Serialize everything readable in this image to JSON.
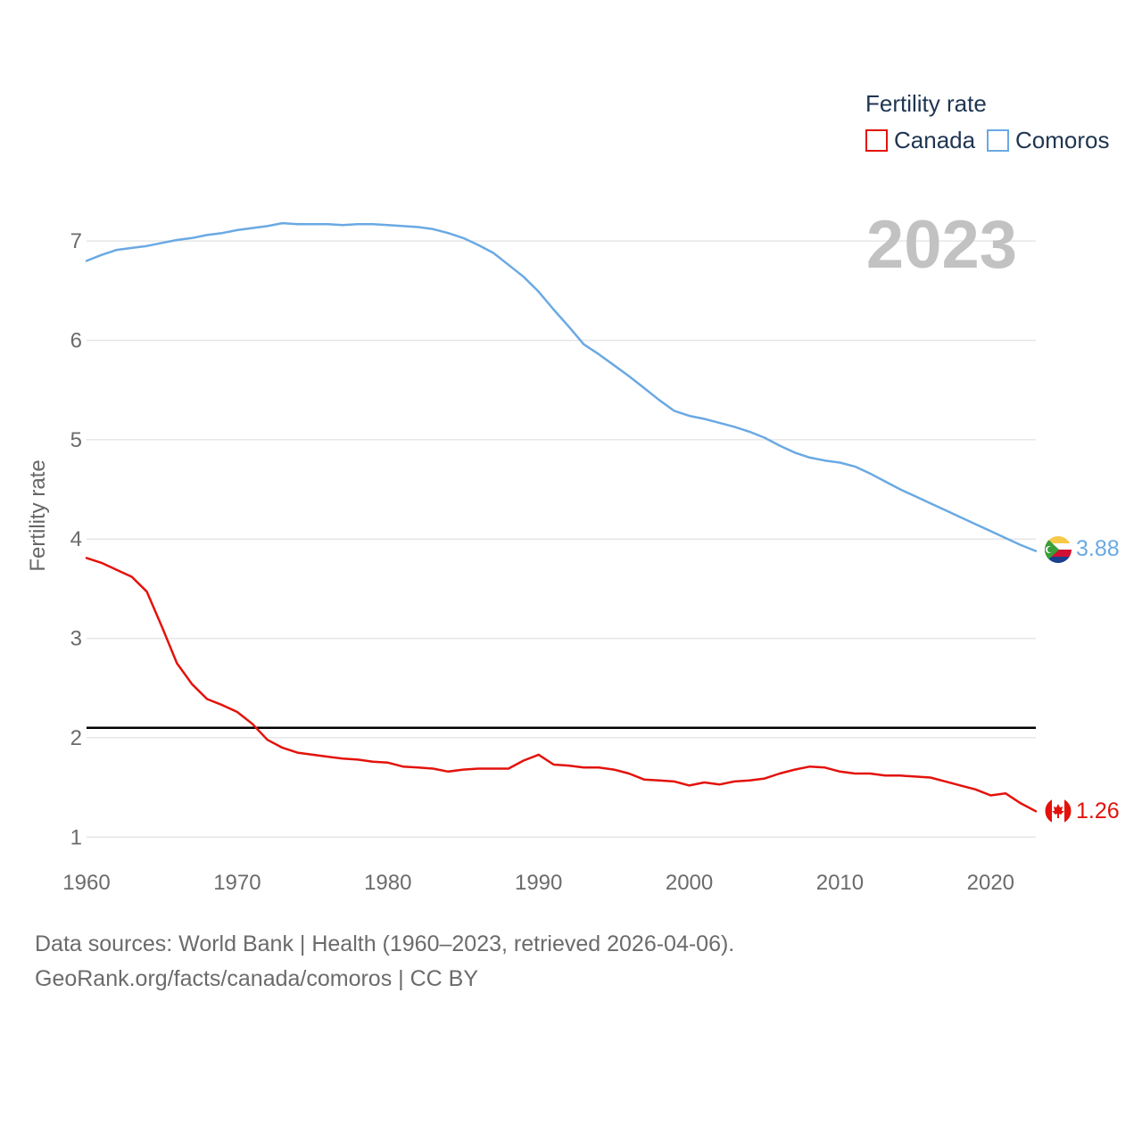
{
  "chart_data": {
    "type": "line",
    "title": "Fertility rate",
    "xlabel": "",
    "ylabel": "Fertility rate",
    "xlim": [
      1960,
      2023
    ],
    "ylim": [
      0.85,
      7.45
    ],
    "x_ticks": [
      1960,
      1970,
      1980,
      1990,
      2000,
      2010,
      2020
    ],
    "y_ticks": [
      1,
      2,
      3,
      4,
      5,
      6,
      7
    ],
    "current_year": "2023",
    "reference_line": {
      "value": 2.1,
      "color": "#000000"
    },
    "x": [
      1960,
      1961,
      1962,
      1963,
      1964,
      1965,
      1966,
      1967,
      1968,
      1969,
      1970,
      1971,
      1972,
      1973,
      1974,
      1975,
      1976,
      1977,
      1978,
      1979,
      1980,
      1981,
      1982,
      1983,
      1984,
      1985,
      1986,
      1987,
      1988,
      1989,
      1990,
      1991,
      1992,
      1993,
      1994,
      1995,
      1996,
      1997,
      1998,
      1999,
      2000,
      2001,
      2002,
      2003,
      2004,
      2005,
      2006,
      2007,
      2008,
      2009,
      2010,
      2011,
      2012,
      2013,
      2014,
      2015,
      2016,
      2017,
      2018,
      2019,
      2020,
      2021,
      2022,
      2023
    ],
    "series": [
      {
        "name": "Canada",
        "color": "#e3120b",
        "flag": "canada-flag",
        "end_label": "1.26",
        "values": [
          3.81,
          3.76,
          3.69,
          3.62,
          3.47,
          3.12,
          2.75,
          2.54,
          2.39,
          2.33,
          2.26,
          2.14,
          1.98,
          1.9,
          1.85,
          1.83,
          1.81,
          1.79,
          1.78,
          1.76,
          1.75,
          1.71,
          1.7,
          1.69,
          1.66,
          1.68,
          1.69,
          1.69,
          1.69,
          1.77,
          1.83,
          1.73,
          1.72,
          1.7,
          1.7,
          1.68,
          1.64,
          1.58,
          1.57,
          1.56,
          1.52,
          1.55,
          1.53,
          1.56,
          1.57,
          1.59,
          1.64,
          1.68,
          1.71,
          1.7,
          1.66,
          1.64,
          1.64,
          1.62,
          1.62,
          1.61,
          1.6,
          1.56,
          1.52,
          1.48,
          1.42,
          1.44,
          1.34,
          1.26
        ]
      },
      {
        "name": "Comoros",
        "color": "#6aa9e3",
        "flag": "comoros-flag",
        "end_label": "3.88",
        "values": [
          6.8,
          6.86,
          6.91,
          6.93,
          6.95,
          6.98,
          7.01,
          7.03,
          7.06,
          7.08,
          7.11,
          7.13,
          7.15,
          7.18,
          7.17,
          7.17,
          7.17,
          7.16,
          7.17,
          7.17,
          7.16,
          7.15,
          7.14,
          7.12,
          7.08,
          7.03,
          6.96,
          6.88,
          6.76,
          6.64,
          6.49,
          6.31,
          6.14,
          5.96,
          5.86,
          5.75,
          5.64,
          5.52,
          5.4,
          5.29,
          5.24,
          5.21,
          5.17,
          5.13,
          5.08,
          5.02,
          4.94,
          4.87,
          4.82,
          4.79,
          4.77,
          4.73,
          4.66,
          4.58,
          4.5,
          4.43,
          4.36,
          4.29,
          4.22,
          4.15,
          4.08,
          4.01,
          3.94,
          3.88
        ]
      }
    ],
    "legend": {
      "title": "Fertility rate",
      "placement": "top-right"
    }
  },
  "footer": {
    "line1": "Data sources: World Bank | Health (1960–2023, retrieved 2026-04-06).",
    "line2": "GeoRank.org/facts/canada/comoros | CC BY"
  }
}
